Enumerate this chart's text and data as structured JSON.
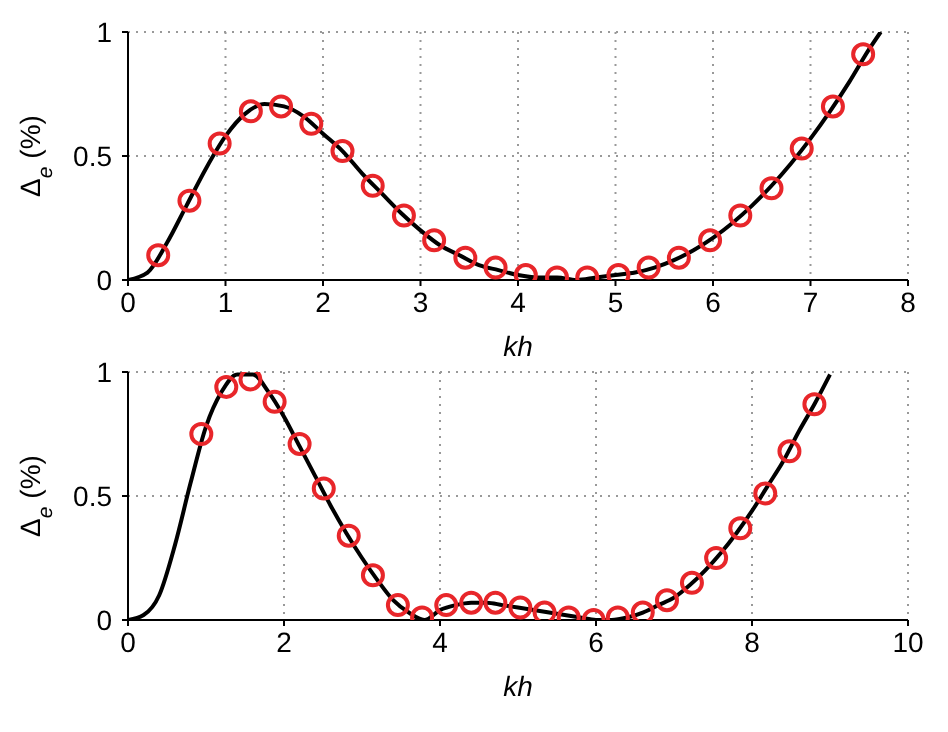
{
  "chart_data": [
    {
      "type": "line",
      "xlabel": "kh",
      "ylabel": "Δ$_{e}$ (%)",
      "xlim": [
        0,
        8
      ],
      "ylim": [
        0,
        1
      ],
      "xticks": [
        0,
        1,
        2,
        3,
        4,
        5,
        6,
        7,
        8
      ],
      "yticks": [
        0,
        0.5,
        1
      ],
      "grid": true,
      "series": [
        {
          "color": "#000000",
          "marker": "none",
          "line_style": "solid",
          "x": [
            0,
            0.2,
            0.4,
            0.6,
            0.8,
            1.0,
            1.2,
            1.4,
            1.6,
            1.8,
            2.0,
            2.2,
            2.4,
            2.6,
            2.8,
            3.0,
            3.2,
            3.4,
            3.6,
            3.8,
            4.0,
            4.2,
            4.4,
            4.6,
            4.8,
            5.0,
            5.2,
            5.4,
            5.6,
            5.8,
            6.0,
            6.2,
            6.4,
            6.6,
            6.8,
            7.0,
            7.2,
            7.4,
            7.6,
            7.72
          ],
          "values": [
            0,
            0.03,
            0.15,
            0.3,
            0.45,
            0.58,
            0.67,
            0.71,
            0.7,
            0.66,
            0.59,
            0.52,
            0.43,
            0.35,
            0.27,
            0.2,
            0.14,
            0.1,
            0.06,
            0.04,
            0.02,
            0.01,
            0.01,
            0,
            0.01,
            0.02,
            0.03,
            0.05,
            0.08,
            0.12,
            0.17,
            0.23,
            0.3,
            0.38,
            0.47,
            0.57,
            0.68,
            0.8,
            0.93,
            1.0
          ]
        },
        {
          "type": "scatter",
          "color": "#e8262a",
          "marker": "circle",
          "x": [
            0.31,
            0.63,
            0.94,
            1.26,
            1.57,
            1.88,
            2.2,
            2.51,
            2.83,
            3.14,
            3.46,
            3.77,
            4.08,
            4.4,
            4.71,
            5.03,
            5.34,
            5.65,
            5.97,
            6.28,
            6.6,
            6.91,
            7.23,
            7.54
          ],
          "values": [
            0.1,
            0.32,
            0.55,
            0.68,
            0.7,
            0.63,
            0.52,
            0.38,
            0.26,
            0.16,
            0.09,
            0.05,
            0.02,
            0.01,
            0.01,
            0.02,
            0.05,
            0.09,
            0.16,
            0.26,
            0.37,
            0.53,
            0.7,
            0.91
          ]
        }
      ]
    },
    {
      "type": "line",
      "xlabel": "kh",
      "ylabel": "Δ$_{e}$ (%)",
      "xlim": [
        0,
        10
      ],
      "ylim": [
        0,
        1
      ],
      "xticks": [
        0,
        2,
        4,
        6,
        8,
        10
      ],
      "yticks": [
        0,
        0.5,
        1
      ],
      "grid": true,
      "series": [
        {
          "color": "#000000",
          "marker": "none",
          "line_style": "solid",
          "x": [
            0,
            0.2,
            0.4,
            0.6,
            0.8,
            1.0,
            1.2,
            1.4,
            1.6,
            1.8,
            2.0,
            2.2,
            2.4,
            2.6,
            2.8,
            3.0,
            3.2,
            3.4,
            3.6,
            3.8,
            4.0,
            4.2,
            4.4,
            4.6,
            4.8,
            5.0,
            5.4,
            5.8,
            6.0,
            6.2,
            6.4,
            6.6,
            6.8,
            7.0,
            7.2,
            7.4,
            7.6,
            7.8,
            8.0,
            8.2,
            8.4,
            8.6,
            8.8,
            9.0
          ],
          "values": [
            0,
            0.02,
            0.1,
            0.3,
            0.55,
            0.78,
            0.92,
            0.99,
            0.99,
            0.92,
            0.82,
            0.7,
            0.58,
            0.46,
            0.35,
            0.25,
            0.16,
            0.08,
            0.03,
            0,
            0.04,
            0.06,
            0.07,
            0.07,
            0.06,
            0.05,
            0.03,
            0.01,
            0,
            0,
            0.01,
            0.03,
            0.06,
            0.09,
            0.14,
            0.2,
            0.27,
            0.35,
            0.44,
            0.54,
            0.64,
            0.76,
            0.87,
            0.99
          ]
        },
        {
          "type": "scatter",
          "color": "#e8262a",
          "marker": "circle",
          "x": [
            0.94,
            1.26,
            1.57,
            1.88,
            2.2,
            2.51,
            2.83,
            3.14,
            3.46,
            3.77,
            4.08,
            4.4,
            4.71,
            5.03,
            5.34,
            5.65,
            5.97,
            6.28,
            6.6,
            6.91,
            7.23,
            7.54,
            7.85,
            8.17,
            8.48,
            8.8
          ],
          "values": [
            0.75,
            0.94,
            0.97,
            0.88,
            0.71,
            0.53,
            0.34,
            0.18,
            0.06,
            0.01,
            0.06,
            0.07,
            0.07,
            0.05,
            0.03,
            0.01,
            0,
            0.01,
            0.03,
            0.08,
            0.15,
            0.25,
            0.37,
            0.51,
            0.68,
            0.87
          ]
        }
      ]
    }
  ]
}
